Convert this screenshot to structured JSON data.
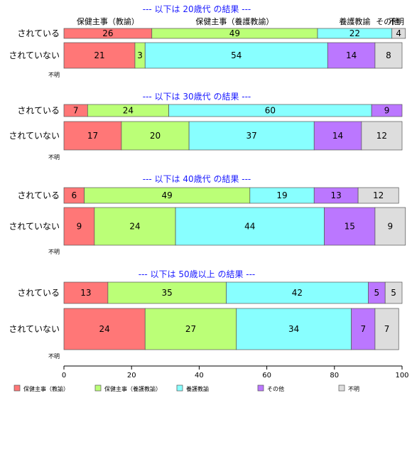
{
  "chart_data": {
    "type": "bar",
    "orientation": "horizontal-stacked-percent",
    "categories": [
      "保健主事（教諭）",
      "保健主事（養護教諭）",
      "養護教諭",
      "その他",
      "不明"
    ],
    "colors": [
      "#ff7777",
      "#bbff77",
      "#88ffff",
      "#bb77ff",
      "#dddddd"
    ],
    "header_labels": [
      "保健主事（教諭）",
      "保健主事（養護教諭）",
      "養護教諭",
      "その他",
      "不明"
    ],
    "xlim": [
      0,
      100
    ],
    "x_ticks": [
      "0",
      "20",
      "40",
      "60",
      "80",
      "100"
    ],
    "legend_position": "bottom",
    "groups": [
      {
        "title": "--- 以下は 20歳代 の結果 ---",
        "rows": [
          {
            "label": "されている",
            "values": [
              26,
              49,
              22,
              0,
              4
            ]
          },
          {
            "label": "されていない",
            "values": [
              21,
              3,
              54,
              14,
              8
            ]
          }
        ],
        "unknown_label": "不明"
      },
      {
        "title": "--- 以下は 30歳代 の結果 ---",
        "rows": [
          {
            "label": "されている",
            "values": [
              7,
              24,
              60,
              9,
              0
            ]
          },
          {
            "label": "されていない",
            "values": [
              17,
              20,
              37,
              14,
              12
            ]
          }
        ],
        "unknown_label": "不明"
      },
      {
        "title": "--- 以下は 40歳代 の結果 ---",
        "rows": [
          {
            "label": "されている",
            "values": [
              6,
              49,
              19,
              13,
              12
            ]
          },
          {
            "label": "されていない",
            "values": [
              9,
              24,
              44,
              15,
              9
            ]
          }
        ],
        "unknown_label": "不明"
      },
      {
        "title": "--- 以下は 50歳以上 の結果 ---",
        "rows": [
          {
            "label": "されている",
            "values": [
              13,
              35,
              42,
              5,
              5
            ]
          },
          {
            "label": "されていない",
            "values": [
              24,
              27,
              34,
              7,
              7
            ]
          }
        ],
        "unknown_label": "不明"
      }
    ]
  }
}
